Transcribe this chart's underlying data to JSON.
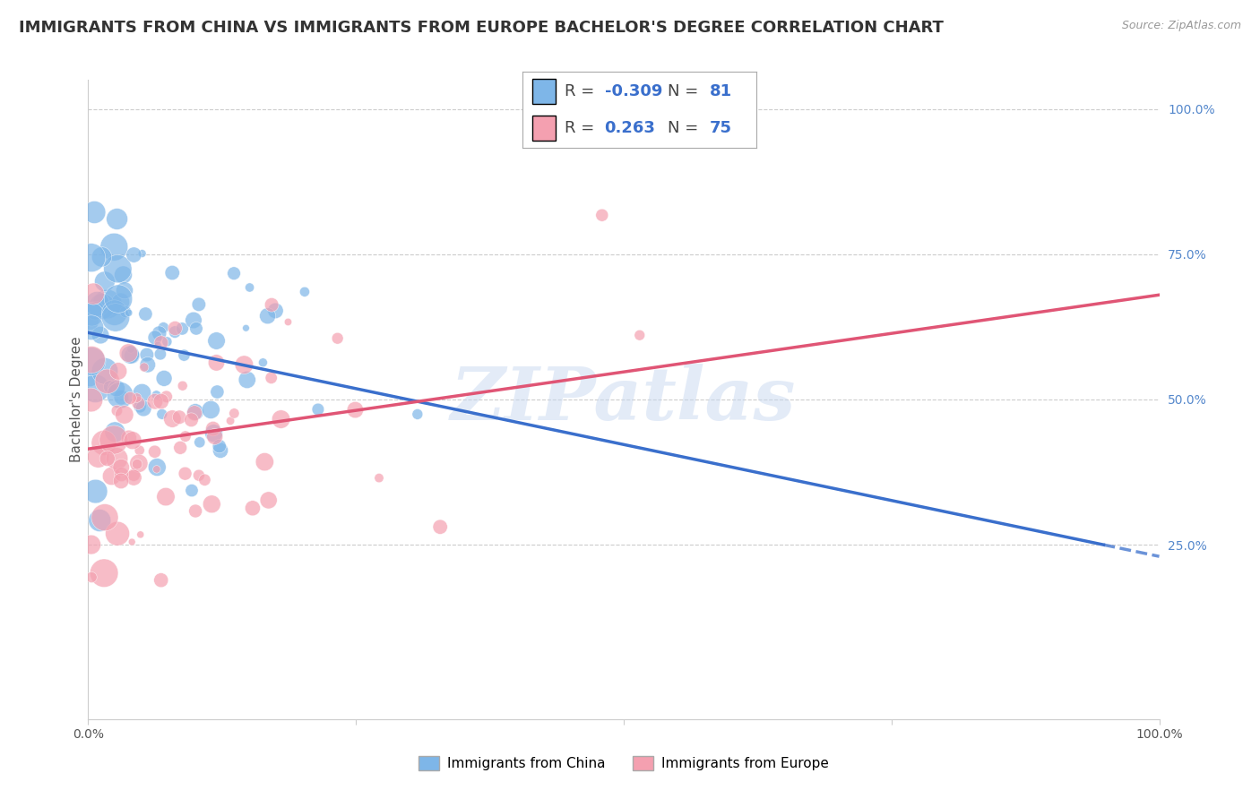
{
  "title": "IMMIGRANTS FROM CHINA VS IMMIGRANTS FROM EUROPE BACHELOR'S DEGREE CORRELATION CHART",
  "source": "Source: ZipAtlas.com",
  "r_china": -0.309,
  "n_china": 81,
  "r_europe": 0.263,
  "n_europe": 75,
  "ylabel": "Bachelor's Degree",
  "color_china": "#7eb6e8",
  "color_europe": "#f4a0b0",
  "line_color_china": "#3a6fcc",
  "line_color_europe": "#e05575",
  "legend_text_color": "#3a6fcc",
  "watermark": "ZIPatlas",
  "background_color": "#ffffff",
  "grid_color": "#cccccc",
  "title_fontsize": 13,
  "label_fontsize": 11,
  "tick_fontsize": 10,
  "legend_fontsize": 13,
  "xlim": [
    0.0,
    1.0
  ],
  "ylim_min": -0.05,
  "ylim_max": 1.05,
  "yticks": [
    0.25,
    0.5,
    0.75,
    1.0
  ],
  "ytick_labels": [
    "25.0%",
    "50.0%",
    "75.0%",
    "100.0%"
  ],
  "china_intercept": 0.615,
  "china_slope": -0.385,
  "europe_intercept": 0.415,
  "europe_slope": 0.265
}
